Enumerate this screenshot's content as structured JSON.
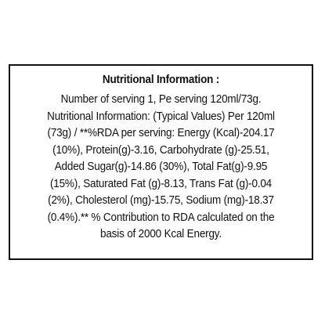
{
  "label": {
    "title": "Nutritional Information :",
    "lines": [
      "Number of serving 1, Pe serving 120ml/73g.",
      "Nutritional Information: (Typical Values) Per 120ml",
      "(73g) / **%RDA per serving: Energy (Kcal)-204.17",
      "(10%), Protein(g)-3.16, Carbohydrate (g)-25.51,",
      "Added Sugar(g)-14.86 (30%), Total Fat(g)-9.95",
      "(15%), Saturated Fat (g)-8.13, Trans Fat (g)-0.04",
      "(2%), Cholesterol (mg)-15.75, Sodium (mg)-18.37",
      "(0.4%).** % Contribution to RDA calculated on the",
      "basis of 2000 Kcal Energy."
    ]
  }
}
